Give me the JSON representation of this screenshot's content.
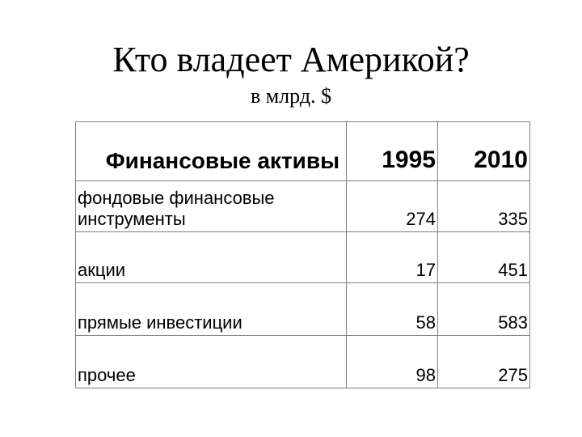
{
  "title": "Кто владеет Америкой?",
  "subtitle": "в млрд. $",
  "table": {
    "headers": [
      "Финансовые активы",
      "1995",
      "2010"
    ],
    "rows": [
      {
        "label": "фондовые финансовые инструменты",
        "v1995": "274",
        "v2010": "335"
      },
      {
        "label": "акции",
        "v1995": "17",
        "v2010": "451"
      },
      {
        "label": "прямые инвестиции",
        "v1995": "58",
        "v2010": "583"
      },
      {
        "label": "прочее",
        "v1995": "98",
        "v2010": "275"
      }
    ]
  }
}
